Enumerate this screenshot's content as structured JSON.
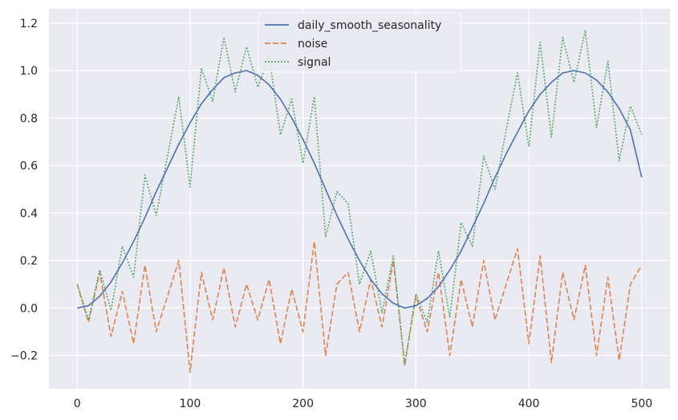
{
  "chart_data": {
    "type": "line",
    "title": "",
    "xlabel": "",
    "ylabel": "",
    "xlim": [
      -25,
      525
    ],
    "ylim": [
      -0.34,
      1.26
    ],
    "x_ticks": [
      0,
      100,
      200,
      300,
      400,
      500
    ],
    "x_tick_labels": [
      "0",
      "100",
      "200",
      "300",
      "400",
      "500"
    ],
    "y_ticks": [
      -0.2,
      0.0,
      0.2,
      0.4,
      0.6,
      0.8,
      1.0,
      1.2
    ],
    "y_tick_labels": [
      "−0.2",
      "0.0",
      "0.2",
      "0.4",
      "0.6",
      "0.8",
      "1.0",
      "1.2"
    ],
    "grid": true,
    "legend_position": "top-center",
    "background": "#eaeaf2",
    "x": [
      0,
      10,
      20,
      30,
      40,
      50,
      60,
      70,
      80,
      90,
      100,
      110,
      120,
      130,
      140,
      150,
      160,
      170,
      180,
      190,
      200,
      210,
      220,
      230,
      240,
      250,
      260,
      270,
      280,
      290,
      300,
      310,
      320,
      330,
      340,
      350,
      360,
      370,
      380,
      390,
      400,
      410,
      420,
      430,
      440,
      450,
      460,
      470,
      480,
      490,
      500
    ],
    "series": [
      {
        "name": "daily_smooth_seasonality",
        "color": "#4c72b0",
        "dash": "solid",
        "values": [
          0.0,
          0.01,
          0.05,
          0.11,
          0.19,
          0.28,
          0.38,
          0.49,
          0.59,
          0.69,
          0.78,
          0.86,
          0.92,
          0.97,
          0.99,
          1.0,
          0.98,
          0.94,
          0.88,
          0.8,
          0.71,
          0.61,
          0.5,
          0.39,
          0.29,
          0.2,
          0.12,
          0.06,
          0.02,
          0.0,
          0.01,
          0.04,
          0.09,
          0.16,
          0.24,
          0.34,
          0.44,
          0.55,
          0.65,
          0.74,
          0.83,
          0.9,
          0.95,
          0.99,
          1.0,
          0.99,
          0.96,
          0.91,
          0.84,
          0.75,
          0.55
        ]
      },
      {
        "name": "noise",
        "color": "#dd8452",
        "dash": "dashed",
        "values": [
          0.1,
          -0.06,
          0.15,
          -0.12,
          0.07,
          -0.15,
          0.18,
          -0.1,
          0.05,
          0.2,
          -0.27,
          0.15,
          -0.05,
          0.17,
          -0.08,
          0.1,
          -0.05,
          0.12,
          -0.15,
          0.08,
          -0.1,
          0.28,
          -0.2,
          0.1,
          0.15,
          -0.1,
          0.12,
          -0.08,
          0.2,
          -0.24,
          0.05,
          -0.1,
          0.15,
          -0.2,
          0.12,
          -0.08,
          0.2,
          -0.05,
          0.1,
          0.25,
          -0.15,
          0.22,
          -0.23,
          0.15,
          -0.05,
          0.18,
          -0.2,
          0.13,
          -0.22,
          0.1,
          0.18
        ]
      },
      {
        "name": "signal",
        "color": "#55a868",
        "dash": "dotted",
        "values": [
          0.1,
          -0.05,
          0.16,
          -0.01,
          0.26,
          0.13,
          0.56,
          0.39,
          0.64,
          0.89,
          0.51,
          1.01,
          0.87,
          1.14,
          0.91,
          1.1,
          0.93,
          1.06,
          0.73,
          0.88,
          0.61,
          0.89,
          0.3,
          0.49,
          0.44,
          0.1,
          0.24,
          -0.02,
          0.22,
          -0.24,
          0.06,
          -0.06,
          0.24,
          -0.04,
          0.36,
          0.26,
          0.64,
          0.5,
          0.75,
          0.99,
          0.68,
          1.12,
          0.72,
          1.14,
          0.95,
          1.17,
          0.76,
          1.04,
          0.62,
          0.85,
          0.73
        ]
      }
    ]
  }
}
